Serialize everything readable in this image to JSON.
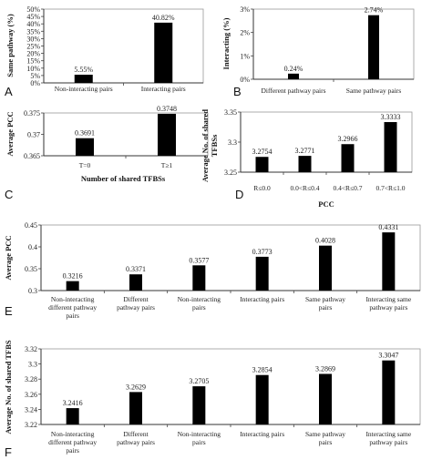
{
  "chart_data": [
    {
      "panel": "A",
      "type": "bar",
      "categories": [
        "Non-interacting pairs",
        "Interacting pairs"
      ],
      "values": [
        5.55,
        40.82
      ],
      "data_labels": [
        "5.55%",
        "40.82%"
      ],
      "ylabel": "Same pathway (%)",
      "xlabel": "",
      "ylim": [
        0,
        50
      ],
      "yticks": [
        "0%",
        "5%",
        "10%",
        "15%",
        "20%",
        "25%",
        "30%",
        "35%",
        "40%",
        "45%",
        "50%"
      ]
    },
    {
      "panel": "B",
      "type": "bar",
      "categories": [
        "Different pathway pairs",
        "Same pathway pairs"
      ],
      "values": [
        0.24,
        2.74
      ],
      "data_labels": [
        "0.24%",
        "2.74%"
      ],
      "ylabel": "Interacting (%)",
      "xlabel": "",
      "ylim": [
        0,
        3
      ],
      "yticks": [
        "0%",
        "1%",
        "2%",
        "3%"
      ]
    },
    {
      "panel": "C",
      "type": "bar",
      "categories": [
        "T=0",
        "T≥1"
      ],
      "values": [
        0.3691,
        0.3748
      ],
      "data_labels": [
        "0.3691",
        "0.3748"
      ],
      "ylabel": "Average PCC",
      "xlabel": "Number of shared TFBSs",
      "ylim": [
        0.365,
        0.375
      ],
      "yticks": [
        "0.365",
        "0.37",
        "0.375"
      ]
    },
    {
      "panel": "D",
      "type": "bar",
      "categories": [
        "R≤0.0",
        "0.0<R≤0.4",
        "0.4<R≤0.7",
        "0.7<R≤1.0"
      ],
      "values": [
        3.2754,
        3.2771,
        3.2966,
        3.3333
      ],
      "data_labels": [
        "3.2754",
        "3.2771",
        "3.2966",
        "3.3333"
      ],
      "ylabel": "Average No. of shared TFBSs",
      "xlabel": "PCC",
      "ylim": [
        3.25,
        3.35
      ],
      "yticks": [
        "3.25",
        "3.3",
        "3.35"
      ]
    },
    {
      "panel": "E",
      "type": "bar",
      "categories": [
        "Non-interacting different pathway pairs",
        "Different pathway pairs",
        "Non-interacting pairs",
        "Interacting pairs",
        "Same pathway pairs",
        "Interacting same pathway pairs"
      ],
      "category_lines": [
        [
          "Non-interacting",
          "different pathway",
          "pairs"
        ],
        [
          "Different",
          "pathway pairs"
        ],
        [
          "Non-interacting",
          "pairs"
        ],
        [
          "Interacting pairs"
        ],
        [
          "Same pathway",
          "pairs"
        ],
        [
          "Interacting same",
          "pathway pairs"
        ]
      ],
      "values": [
        0.3216,
        0.3371,
        0.3577,
        0.3773,
        0.4028,
        0.4331
      ],
      "data_labels": [
        "0.3216",
        "0.3371",
        "0.3577",
        "0.3773",
        "0.4028",
        "0.4331"
      ],
      "ylabel": "Average PCC",
      "xlabel": "",
      "ylim": [
        0.3,
        0.45
      ],
      "yticks": [
        "0.3",
        "0.35",
        "0.4",
        "0.45"
      ]
    },
    {
      "panel": "F",
      "type": "bar",
      "categories": [
        "Non-interacting different pathway pairs",
        "Different pathway pairs",
        "Non-interacting pairs",
        "Interacting pairs",
        "Same pathway pairs",
        "Interacting same pathway pairs"
      ],
      "category_lines": [
        [
          "Non-interacting",
          "different pathway",
          "pairs"
        ],
        [
          "Different",
          "pathway pairs"
        ],
        [
          "Non-interacting",
          "pairs"
        ],
        [
          "Interacting pairs"
        ],
        [
          "Same pathway",
          "pairs"
        ],
        [
          "Interacting same",
          "pathway pairs"
        ]
      ],
      "values": [
        3.2416,
        3.2629,
        3.2705,
        3.2854,
        3.2869,
        3.3047
      ],
      "data_labels": [
        "3.2416",
        "3.2629",
        "3.2705",
        "3.2854",
        "3.2869",
        "3.3047"
      ],
      "ylabel": "Average No. of shared TFBS",
      "xlabel": "",
      "ylim": [
        3.22,
        3.32
      ],
      "yticks": [
        "3.22",
        "3.24",
        "3.26",
        "3.28",
        "3.3",
        "3.32"
      ]
    }
  ]
}
